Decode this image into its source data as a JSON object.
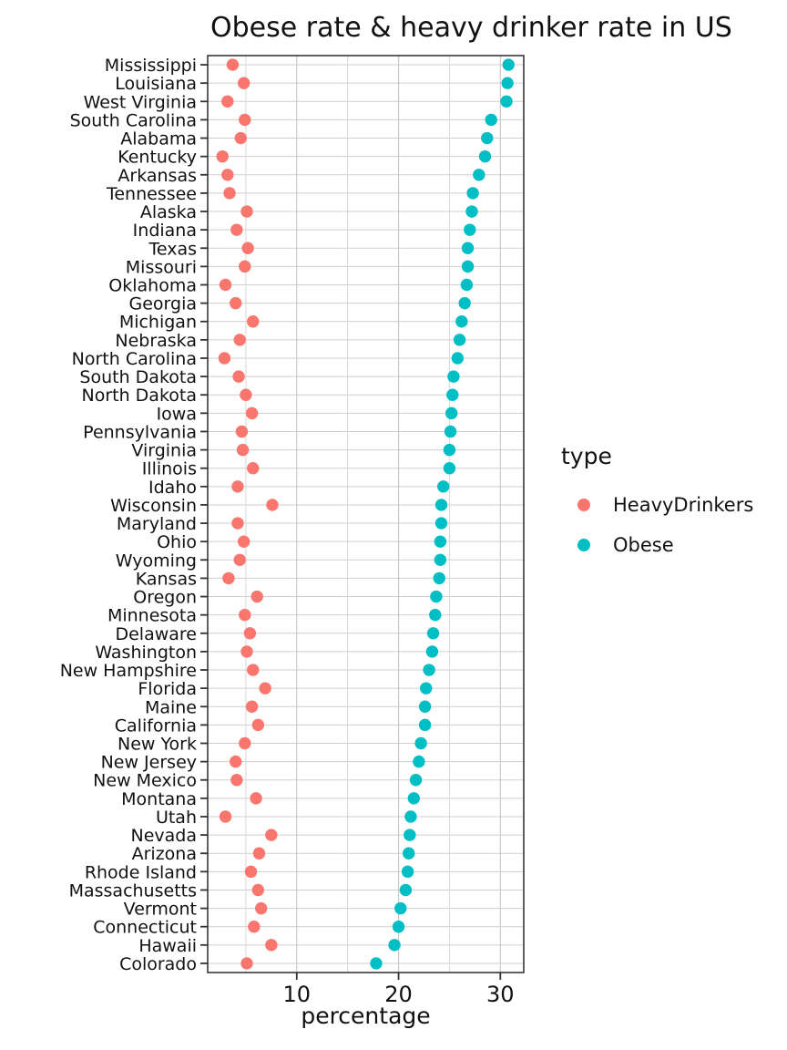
{
  "chart_data": {
    "type": "scatter",
    "variant": "cleveland-dot-plot",
    "title": "Obese rate & heavy drinker rate in US",
    "xlabel": "percentage",
    "legend_title": "type",
    "legend_position": "right",
    "grid": true,
    "xlim": [
      1.25,
      32.3
    ],
    "x_ticks": [
      10,
      20,
      30
    ],
    "x_minor_ticks": [
      5,
      15,
      25
    ],
    "series": [
      {
        "name": "HeavyDrinkers",
        "color": "#F8766D"
      },
      {
        "name": "Obese",
        "color": "#00BFC4"
      }
    ],
    "states": [
      {
        "state": "Mississippi",
        "values": [
          3.7,
          30.8
        ]
      },
      {
        "state": "Louisiana",
        "values": [
          4.8,
          30.7
        ]
      },
      {
        "state": "West Virginia",
        "values": [
          3.2,
          30.6
        ]
      },
      {
        "state": "South Carolina",
        "values": [
          4.9,
          29.1
        ]
      },
      {
        "state": "Alabama",
        "values": [
          4.5,
          28.7
        ]
      },
      {
        "state": "Kentucky",
        "values": [
          2.7,
          28.5
        ]
      },
      {
        "state": "Arkansas",
        "values": [
          3.2,
          27.9
        ]
      },
      {
        "state": "Tennessee",
        "values": [
          3.4,
          27.3
        ]
      },
      {
        "state": "Alaska",
        "values": [
          5.1,
          27.2
        ]
      },
      {
        "state": "Indiana",
        "values": [
          4.1,
          27.0
        ]
      },
      {
        "state": "Texas",
        "values": [
          5.2,
          26.8
        ]
      },
      {
        "state": "Missouri",
        "values": [
          4.9,
          26.8
        ]
      },
      {
        "state": "Oklahoma",
        "values": [
          3.0,
          26.7
        ]
      },
      {
        "state": "Georgia",
        "values": [
          4.0,
          26.5
        ]
      },
      {
        "state": "Michigan",
        "values": [
          5.7,
          26.2
        ]
      },
      {
        "state": "Nebraska",
        "values": [
          4.4,
          26.0
        ]
      },
      {
        "state": "North Carolina",
        "values": [
          2.9,
          25.8
        ]
      },
      {
        "state": "South Dakota",
        "values": [
          4.3,
          25.4
        ]
      },
      {
        "state": "North Dakota",
        "values": [
          5.0,
          25.3
        ]
      },
      {
        "state": "Iowa",
        "values": [
          5.6,
          25.2
        ]
      },
      {
        "state": "Pennsylvania",
        "values": [
          4.6,
          25.1
        ]
      },
      {
        "state": "Virginia",
        "values": [
          4.7,
          25.0
        ]
      },
      {
        "state": "Illinois",
        "values": [
          5.7,
          25.0
        ]
      },
      {
        "state": "Idaho",
        "values": [
          4.2,
          24.4
        ]
      },
      {
        "state": "Wisconsin",
        "values": [
          7.6,
          24.2
        ]
      },
      {
        "state": "Maryland",
        "values": [
          4.2,
          24.2
        ]
      },
      {
        "state": "Ohio",
        "values": [
          4.8,
          24.1
        ]
      },
      {
        "state": "Wyoming",
        "values": [
          4.4,
          24.1
        ]
      },
      {
        "state": "Kansas",
        "values": [
          3.3,
          24.0
        ]
      },
      {
        "state": "Oregon",
        "values": [
          6.1,
          23.7
        ]
      },
      {
        "state": "Minnesota",
        "values": [
          4.9,
          23.6
        ]
      },
      {
        "state": "Delaware",
        "values": [
          5.4,
          23.4
        ]
      },
      {
        "state": "Washington",
        "values": [
          5.1,
          23.3
        ]
      },
      {
        "state": "New Hampshire",
        "values": [
          5.7,
          23.0
        ]
      },
      {
        "state": "Florida",
        "values": [
          6.9,
          22.7
        ]
      },
      {
        "state": "Maine",
        "values": [
          5.6,
          22.6
        ]
      },
      {
        "state": "California",
        "values": [
          6.2,
          22.6
        ]
      },
      {
        "state": "New York",
        "values": [
          4.9,
          22.2
        ]
      },
      {
        "state": "New Jersey",
        "values": [
          4.0,
          22.0
        ]
      },
      {
        "state": "New Mexico",
        "values": [
          4.1,
          21.7
        ]
      },
      {
        "state": "Montana",
        "values": [
          6.0,
          21.5
        ]
      },
      {
        "state": "Utah",
        "values": [
          3.0,
          21.2
        ]
      },
      {
        "state": "Nevada",
        "values": [
          7.5,
          21.1
        ]
      },
      {
        "state": "Arizona",
        "values": [
          6.3,
          21.0
        ]
      },
      {
        "state": "Rhode Island",
        "values": [
          5.5,
          20.9
        ]
      },
      {
        "state": "Massachusetts",
        "values": [
          6.2,
          20.7
        ]
      },
      {
        "state": "Vermont",
        "values": [
          6.5,
          20.2
        ]
      },
      {
        "state": "Connecticut",
        "values": [
          5.8,
          20.0
        ]
      },
      {
        "state": "Hawaii",
        "values": [
          7.5,
          19.6
        ]
      },
      {
        "state": "Colorado",
        "values": [
          5.1,
          17.8
        ]
      }
    ]
  },
  "style": {
    "grid_major_color": "#C6C6C6",
    "grid_minor_color": "#D8D8D8",
    "grid_row_color": "#CFCFCF",
    "panel_border_color": "#2b2b2b",
    "tick_color": "#333333",
    "point_radius": 6.7
  }
}
